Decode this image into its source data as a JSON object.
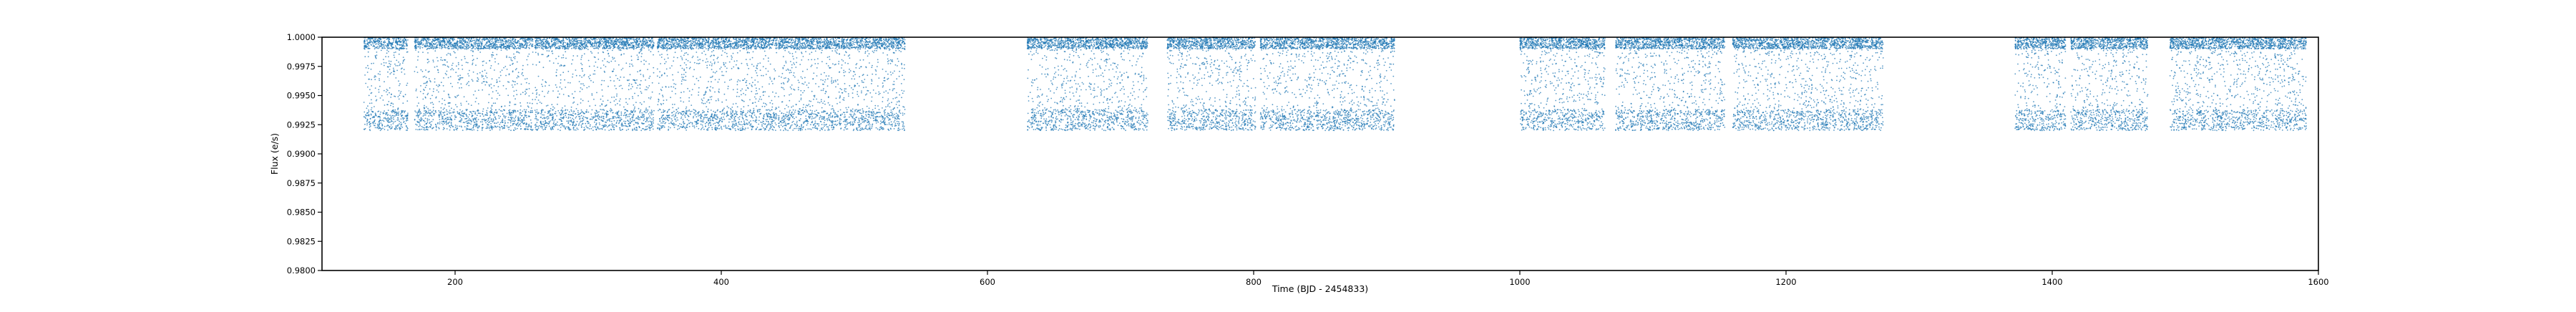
{
  "chart_data": {
    "type": "scatter",
    "title": "",
    "xlabel": "Time (BJD - 2454833)",
    "ylabel": "Flux (e/s)",
    "xlim": [
      100,
      1600
    ],
    "ylim": [
      0.98,
      1.0
    ],
    "xticks": [
      200,
      400,
      600,
      800,
      1000,
      1200,
      1400,
      1600
    ],
    "yticks": [
      0.98,
      0.9825,
      0.985,
      0.9875,
      0.99,
      0.9925,
      0.995,
      0.9975,
      1.0
    ],
    "ytick_labels": [
      "0.9800",
      "0.9825",
      "0.9850",
      "0.9875",
      "0.9900",
      "0.9925",
      "0.9950",
      "0.9975",
      "1.0000"
    ],
    "grid": false,
    "legend": "none",
    "point_color": "#1f77b4",
    "series": [
      {
        "segments": [
          [
            131.5,
            164.5
          ],
          [
            169.5,
            258.5
          ],
          [
            260.0,
            349.5
          ],
          [
            352.0,
            442.0
          ],
          [
            443.0,
            538.0
          ],
          [
            630.0,
            720.5
          ],
          [
            735.0,
            801.5
          ],
          [
            805.0,
            906.0
          ],
          [
            1000.0,
            1064.0
          ],
          [
            1072.0,
            1154.0
          ],
          [
            1160.0,
            1273.0
          ],
          [
            1372.0,
            1410.0
          ],
          [
            1414.0,
            1472.0
          ],
          [
            1488.5,
            1591.0
          ]
        ],
        "flux_distribution": {
          "upper_band": [
            0.999,
            1.0
          ],
          "lower_band": [
            0.992,
            0.9938
          ],
          "scatter_range": [
            0.992,
            1.0
          ]
        }
      }
    ]
  }
}
